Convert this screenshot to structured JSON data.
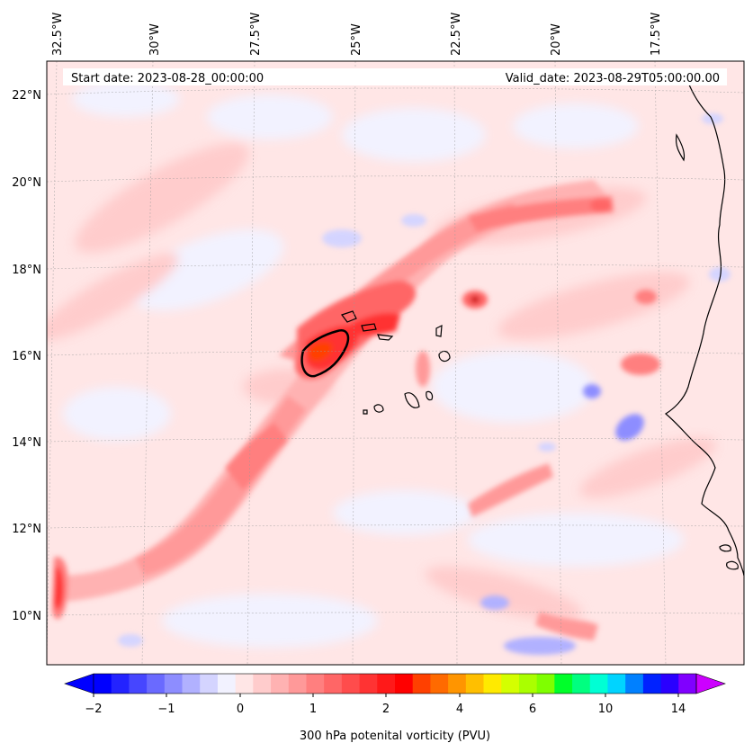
{
  "header": {
    "start_date": "Start date: 2023-08-28_00:00:00",
    "valid_date": "Valid_date: 2023-08-29T05:00:00.00"
  },
  "axes": {
    "lon_labels": [
      "32.5°W",
      "30°W",
      "27.5°W",
      "25°W",
      "22.5°W",
      "20°W",
      "17.5°W"
    ],
    "lat_labels": [
      "22°N",
      "20°N",
      "18°N",
      "16°N",
      "14°N",
      "12°N",
      "10°N"
    ]
  },
  "colorbar": {
    "label": "300 hPa potenital vorticity (PVU)",
    "tick_labels": [
      "−2",
      "−1",
      "0",
      "1",
      "2",
      "4",
      "6",
      "10",
      "14"
    ],
    "colors": [
      "#0000ff",
      "#2323ff",
      "#4646ff",
      "#6a6aff",
      "#8d8dff",
      "#b1b1ff",
      "#d4d4ff",
      "#f2f2ff",
      "#ffe6e6",
      "#ffcccc",
      "#ffb2b2",
      "#ff9999",
      "#ff7f7f",
      "#ff6666",
      "#ff4c4c",
      "#ff3333",
      "#ff1919",
      "#ff0000",
      "#ff4000",
      "#ff6a00",
      "#ff9500",
      "#ffbf00",
      "#ffea00",
      "#d4ff00",
      "#aaff00",
      "#7fff00",
      "#00ff2a",
      "#00ff80",
      "#00ffd4",
      "#00d4ff",
      "#0080ff",
      "#0022ff",
      "#2a00ff",
      "#8000ff"
    ],
    "under_color": "#0000ff",
    "over_color": "#cc00ff"
  }
}
